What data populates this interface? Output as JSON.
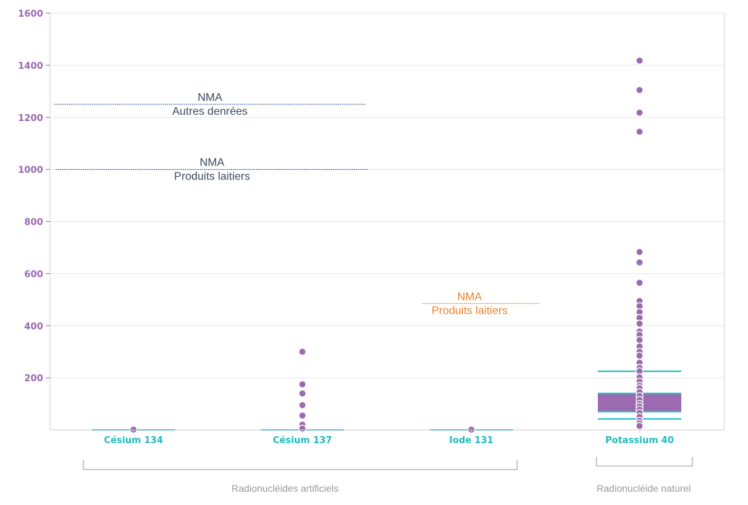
{
  "chart_data": {
    "type": "box",
    "ylim": [
      0,
      1600
    ],
    "yticks": [
      "200",
      "400",
      "600",
      "800",
      "1000",
      "1200",
      "1400",
      "1600"
    ],
    "categories": [
      "Césium 134",
      "Césium 137",
      "Iode 131",
      "Potassium 40"
    ],
    "boxes": [
      {
        "name": "Césium 134",
        "whisker_low": 0,
        "q1": 0,
        "median": 0,
        "q3": 0,
        "whisker_high": 0,
        "outliers": [
          1
        ]
      },
      {
        "name": "Césium 137",
        "whisker_low": 0,
        "q1": 0,
        "median": 0,
        "q3": 0,
        "whisker_high": 0,
        "outliers": [
          300,
          175,
          140,
          95,
          55,
          20,
          5
        ]
      },
      {
        "name": "Iode 131",
        "whisker_low": 0,
        "q1": 0,
        "median": 0,
        "q3": 0,
        "whisker_high": 0,
        "outliers": [
          1
        ]
      },
      {
        "name": "Potassium 40",
        "whisker_low": 42,
        "q1": 70,
        "median": 100,
        "q3": 140,
        "whisker_high": 225,
        "outliers": [
          1418,
          1305,
          1218,
          1145,
          683,
          643,
          565,
          495,
          475,
          452,
          430,
          408,
          378,
          365,
          345,
          320,
          300,
          285,
          258,
          238,
          225,
          202,
          185,
          170,
          160,
          145,
          130,
          115,
          100,
          90,
          78,
          65,
          50,
          35,
          25,
          15
        ]
      }
    ],
    "reference_lines": [
      {
        "value": 1250,
        "label_top": "NMA",
        "label_bottom": "Autres denrées",
        "color": "#2c5fa8",
        "text_color": "#3d4a5c"
      },
      {
        "value": 1000,
        "label_top": "NMA",
        "label_bottom": "Produits laitiers",
        "color": "#2c5fa8",
        "text_color": "#3d4a5c"
      },
      {
        "value": 485,
        "label_top": "NMA",
        "label_bottom": "Produits laitiers",
        "color": "#e8832a",
        "text_color": "#e8832a"
      }
    ],
    "groups": [
      {
        "label": "Radionucléides artificiels"
      },
      {
        "label": "Radionucléide naturel"
      }
    ],
    "colors": {
      "box": "#9b6ab0",
      "whisker": "#1ebcc0",
      "outlier": "#9b6ab0",
      "grid": "#e6e6e6"
    }
  }
}
